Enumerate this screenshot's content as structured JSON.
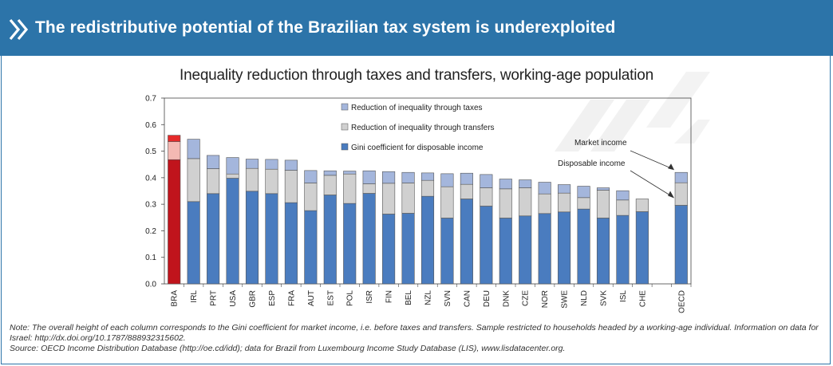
{
  "header": {
    "title": "The redistributive potential of the Brazilian tax system is underexploited"
  },
  "notes": {
    "note": "Note: The overall height of each column corresponds to the Gini coefficient for market income, i.e. before taxes and transfers. Sample restricted to households headed by a working-age individual. Information on data for Israel: http://dx.doi.org/10.1787/888932315602.",
    "source": "Source: OECD Income Distribution Database (http://oe.cd/idd); data for Brazil from Luxembourg Income Study Database (LIS), www.lisdatacenter.org."
  },
  "colors": {
    "header_bg": "#2c74a9",
    "taxes": "#a4b6dc",
    "transfers": "#d0d0d0",
    "gini": "#4a7cbf",
    "bra_taxes": "#e52a2a",
    "bra_transfers": "#f4b9b3",
    "bra_gini": "#c0141c"
  },
  "chart_data": {
    "type": "bar",
    "stacked": true,
    "title": "Inequality reduction through taxes and transfers, working-age population",
    "ylim": [
      0,
      0.7
    ],
    "yticks": [
      "0.0",
      "0.1",
      "0.2",
      "0.3",
      "0.4",
      "0.5",
      "0.6",
      "0.7"
    ],
    "ytick_values": [
      0,
      0.1,
      0.2,
      0.3,
      0.4,
      0.5,
      0.6,
      0.7
    ],
    "categories": [
      "BRA",
      "IRL",
      "PRT",
      "USA",
      "GBR",
      "ESP",
      "FRA",
      "AUT",
      "EST",
      "POL",
      "ISR",
      "FIN",
      "BEL",
      "NZL",
      "SVN",
      "CAN",
      "DEU",
      "DNK",
      "CZE",
      "NOR",
      "SWE",
      "NLD",
      "SVK",
      "ISL",
      "CHE",
      "",
      "OECD"
    ],
    "series": [
      {
        "name": "Gini coefficient for disposable income",
        "values": [
          0.468,
          0.31,
          0.34,
          0.398,
          0.349,
          0.34,
          0.306,
          0.276,
          0.335,
          0.303,
          0.341,
          0.263,
          0.266,
          0.33,
          0.248,
          0.32,
          0.293,
          0.248,
          0.256,
          0.265,
          0.271,
          0.282,
          0.248,
          0.258,
          0.272,
          null,
          0.296
        ]
      },
      {
        "name": "Reduction of inequality through transfers",
        "values": [
          0.068,
          0.162,
          0.094,
          0.016,
          0.086,
          0.092,
          0.122,
          0.104,
          0.074,
          0.111,
          0.036,
          0.116,
          0.114,
          0.06,
          0.118,
          0.055,
          0.069,
          0.11,
          0.106,
          0.074,
          0.071,
          0.043,
          0.105,
          0.058,
          0.048,
          null,
          0.085
        ]
      },
      {
        "name": "Reduction of inequality through taxes",
        "values": [
          0.024,
          0.073,
          0.05,
          0.062,
          0.035,
          0.037,
          0.038,
          0.047,
          0.017,
          0.011,
          0.049,
          0.044,
          0.04,
          0.028,
          0.049,
          0.042,
          0.05,
          0.037,
          0.03,
          0.044,
          0.032,
          0.043,
          0.009,
          0.035,
          0.0,
          null,
          0.039
        ]
      }
    ],
    "legend": {
      "position": "top-center",
      "entries": [
        "Reduction of inequality through taxes",
        "Reduction of inequality through transfers",
        "Gini coefficient for disposable income"
      ]
    },
    "annotations": [
      {
        "text": "Market income",
        "points_to": "OECD"
      },
      {
        "text": "Disposable income",
        "points_to": "OECD"
      }
    ],
    "highlight_category": "BRA"
  }
}
